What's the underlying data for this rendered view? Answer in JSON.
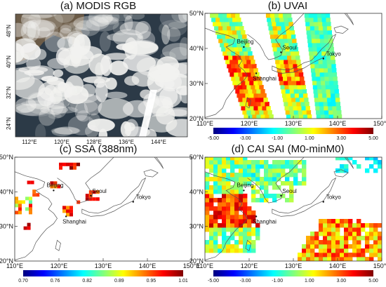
{
  "figure": {
    "panels": [
      {
        "id": "a",
        "title": "(a) MODIS RGB"
      },
      {
        "id": "b",
        "title": "(b) UVAI"
      },
      {
        "id": "c",
        "title": "(c) SSA (388nm)"
      },
      {
        "id": "d",
        "title": "(d) CAI SAI (M0-minM0)"
      }
    ]
  },
  "chart_data": [
    {
      "type": "image",
      "panel": "a",
      "title": "(a) MODIS RGB",
      "x_ticks": [
        "112°E",
        "120°E",
        "128°E",
        "136°E",
        "144°E"
      ],
      "y_ticks": [
        "24°N",
        "32°N",
        "40°N",
        "48°N"
      ]
    },
    {
      "type": "heatmap",
      "panel": "b",
      "title": "(b) UVAI",
      "x_ticks": [
        "110°E",
        "120°E",
        "130°E",
        "140°E",
        "150°E"
      ],
      "y_ticks": [
        "20°N",
        "30°N",
        "40°N",
        "50°N"
      ],
      "xlim": [
        110,
        150
      ],
      "ylim": [
        20,
        50
      ],
      "cities": [
        "Beijing",
        "Seoul",
        "Shanghai",
        "Tokyo"
      ],
      "colorbar": {
        "ticks": [
          "-5.00",
          "-3.00",
          "-1.00",
          "1.00",
          "3.00",
          "5.00"
        ]
      }
    },
    {
      "type": "heatmap",
      "panel": "c",
      "title": "(c) SSA (388nm)",
      "x_ticks": [
        "110°E",
        "120°E",
        "130°E",
        "140°E",
        "150°E"
      ],
      "y_ticks": [
        "20°N",
        "30°N",
        "40°N",
        "50°N"
      ],
      "xlim": [
        110,
        150
      ],
      "ylim": [
        20,
        50
      ],
      "cities": [
        "Beijing",
        "Seoul",
        "Shanghai",
        "Tokyo"
      ],
      "colorbar": {
        "ticks": [
          "0.70",
          "0.76",
          "0.82",
          "0.89",
          "0.95",
          "1.01"
        ]
      }
    },
    {
      "type": "heatmap",
      "panel": "d",
      "title": "(d) CAI SAI (M0-minM0)",
      "x_ticks": [
        "110°E",
        "120°E",
        "130°E",
        "140°E",
        "150°E"
      ],
      "y_ticks": [
        "20°N",
        "30°N",
        "40°N",
        "50°N"
      ],
      "xlim": [
        110,
        150
      ],
      "ylim": [
        20,
        50
      ],
      "cities": [
        "Beijing",
        "Seoul",
        "Shanghai",
        "Tokyo"
      ],
      "colorbar": {
        "ticks": [
          "-5.00",
          "-3.00",
          "-1.00",
          "1.00",
          "3.00",
          "5.00"
        ]
      }
    }
  ],
  "colors": {
    "scale": [
      "#00007f",
      "#0000ff",
      "#007fff",
      "#00ffff",
      "#7fff7f",
      "#ffff00",
      "#ff7f00",
      "#ff0000",
      "#7f0000"
    ]
  }
}
